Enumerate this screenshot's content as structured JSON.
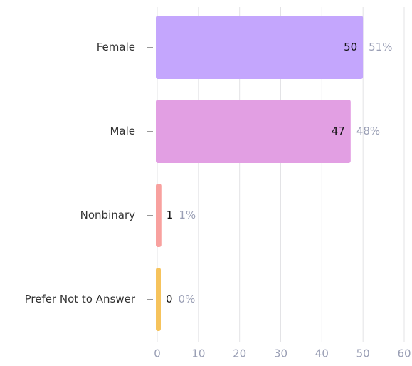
{
  "chart_data": {
    "type": "hbar",
    "categories": [
      "Female",
      "Male",
      "Nonbinary",
      "Prefer Not to Answer"
    ],
    "values": [
      50,
      47,
      1,
      0
    ],
    "percent_labels": [
      "51%",
      "48%",
      "1%",
      "0%"
    ],
    "colors": [
      "#c4a6fd",
      "#e29fe3",
      "#f8a19f",
      "#f6c35c"
    ],
    "xlim": [
      0,
      60
    ],
    "xticks": [
      0,
      10,
      20,
      30,
      40,
      50,
      60
    ],
    "grid": true
  }
}
